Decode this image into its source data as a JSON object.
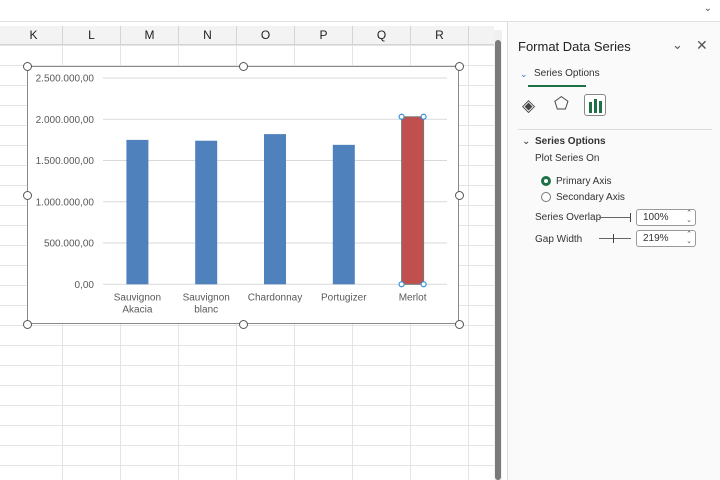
{
  "columns": [
    "K",
    "L",
    "M",
    "N",
    "O",
    "P",
    "Q",
    "R"
  ],
  "panel": {
    "title": "Format Data Series",
    "tab": "Series Options",
    "section": "Series Options",
    "plot_series_on": "Plot Series On",
    "primary_axis": "Primary Axis",
    "secondary_axis": "Secondary Axis",
    "selected_axis": "primary",
    "series_overlap_label": "Series Overlap",
    "series_overlap_value": "100%",
    "gap_width_label": "Gap Width",
    "gap_width_value": "219%",
    "accent": "#1e7145"
  },
  "chart_data": {
    "type": "bar",
    "categories": [
      "Sauvignon Akacia",
      "Sauvignon blanc",
      "Chardonnay",
      "Portugizer",
      "Merlot"
    ],
    "category_lines": [
      [
        "Sauvignon",
        "Akacia"
      ],
      [
        "Sauvignon",
        "blanc"
      ],
      [
        "Chardonnay"
      ],
      [
        "Portugizer"
      ],
      [
        "Merlot"
      ]
    ],
    "values": [
      1750000,
      1740000,
      1820000,
      1690000,
      2030000
    ],
    "colors": [
      "#4f81bd",
      "#4f81bd",
      "#4f81bd",
      "#4f81bd",
      "#c0504d"
    ],
    "selected_point": "Merlot",
    "ylim": [
      0,
      2500000
    ],
    "yticks": [
      "0,00",
      "500.000,00",
      "1.000.000,00",
      "1.500.000,00",
      "2.000.000,00",
      "2.500.000,00"
    ],
    "grid": true,
    "title": "",
    "xlabel": "",
    "ylabel": ""
  }
}
